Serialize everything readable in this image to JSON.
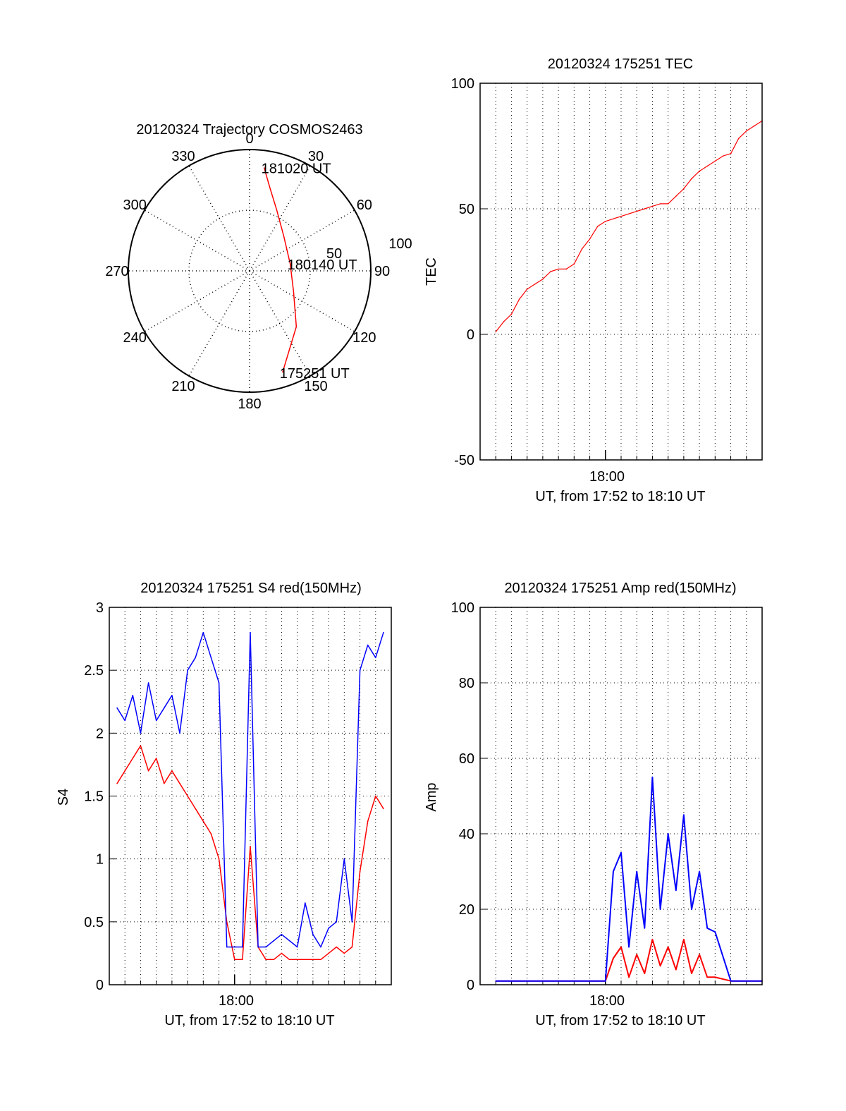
{
  "colors": {
    "red": "#ff0000",
    "blue": "#0000ff",
    "axis": "#000000",
    "grid": "#000000"
  },
  "chart_data": [
    {
      "id": "polar",
      "type": "polar-trajectory",
      "title": "20120324 Trajectory COSMOS2463",
      "azimuth_labels": [
        "0",
        "30",
        "60",
        "90",
        "120",
        "150",
        "180",
        "210",
        "240",
        "270",
        "300",
        "330"
      ],
      "radius_labels": [
        "50",
        "100"
      ],
      "radius_max": 100,
      "track": {
        "color": "#ff0000",
        "points": [
          {
            "az": 8,
            "r": 86
          },
          {
            "az": 14,
            "r": 70
          },
          {
            "az": 24,
            "r": 55
          },
          {
            "az": 45,
            "r": 40
          },
          {
            "az": 80,
            "r": 34
          },
          {
            "az": 115,
            "r": 40
          },
          {
            "az": 140,
            "r": 60
          },
          {
            "az": 162,
            "r": 88
          }
        ],
        "labels": [
          {
            "text": "181020 UT",
            "az": 8,
            "r": 86
          },
          {
            "text": "180140 UT",
            "az": 80,
            "r": 34
          },
          {
            "text": "175251 UT",
            "az": 162,
            "r": 88
          }
        ]
      }
    },
    {
      "id": "tec",
      "type": "line",
      "title": "20120324 175251 TEC",
      "xlabel": "UT, from 17:52 to 18:10 UT",
      "ylabel": "TEC",
      "xlim": [
        0,
        18
      ],
      "ylim": [
        -50,
        100
      ],
      "yticks": [
        -50,
        0,
        50,
        100
      ],
      "xtick_label": "18:00",
      "xtick_value": 8,
      "series": [
        {
          "name": "TEC",
          "color": "#ff0000",
          "x": [
            1.0,
            1.5,
            2.0,
            2.5,
            3.0,
            3.5,
            4.0,
            4.5,
            5.0,
            5.5,
            6.0,
            6.5,
            7.0,
            7.5,
            8.0,
            8.5,
            9.0,
            9.5,
            10.0,
            10.5,
            11.0,
            11.5,
            12.0,
            12.5,
            13.0,
            13.5,
            14.0,
            14.5,
            15.0,
            15.5,
            16.0,
            16.5,
            17.0,
            17.5,
            18.0
          ],
          "values": [
            1,
            5,
            8,
            14,
            18,
            20,
            22,
            25,
            26,
            26,
            28,
            34,
            38,
            43,
            45,
            46,
            47,
            48,
            49,
            50,
            51,
            52,
            52,
            55,
            58,
            62,
            65,
            67,
            69,
            71,
            72,
            78,
            81,
            83,
            85
          ]
        }
      ]
    },
    {
      "id": "s4",
      "type": "line",
      "title": "20120324 175251 S4 red(150MHz)",
      "xlabel": "UT, from 17:52 to 18:10 UT",
      "ylabel": "S4",
      "xlim": [
        0,
        18
      ],
      "ylim": [
        0,
        3
      ],
      "yticks": [
        0,
        0.5,
        1,
        1.5,
        2,
        2.5,
        3
      ],
      "ytick_labels": [
        "0",
        "0.5",
        "1",
        "1.5",
        "2",
        "2.5",
        "3"
      ],
      "xtick_label": "18:00",
      "xtick_value": 8,
      "series": [
        {
          "name": "S4 red",
          "color": "#ff0000",
          "x": [
            0.5,
            1.0,
            1.5,
            2.0,
            2.5,
            3.0,
            3.5,
            4.0,
            4.5,
            5.0,
            5.5,
            6.0,
            6.5,
            7.0,
            7.5,
            8.0,
            8.5,
            9.0,
            9.5,
            10.0,
            10.5,
            11.0,
            11.5,
            12.0,
            12.5,
            13.0,
            13.5,
            14.0,
            14.5,
            15.0,
            15.5,
            16.0,
            16.5,
            17.0,
            17.5
          ],
          "values": [
            1.6,
            1.7,
            1.8,
            1.9,
            1.7,
            1.8,
            1.6,
            1.7,
            1.6,
            1.5,
            1.4,
            1.3,
            1.2,
            1.0,
            0.5,
            0.2,
            0.2,
            1.1,
            0.3,
            0.2,
            0.2,
            0.25,
            0.2,
            0.2,
            0.2,
            0.2,
            0.2,
            0.25,
            0.3,
            0.25,
            0.3,
            0.9,
            1.3,
            1.5,
            1.4
          ]
        },
        {
          "name": "S4 blue",
          "color": "#0000ff",
          "x": [
            0.5,
            1.0,
            1.5,
            2.0,
            2.5,
            3.0,
            3.5,
            4.0,
            4.5,
            5.0,
            5.5,
            6.0,
            6.5,
            7.0,
            7.5,
            8.0,
            8.5,
            9.0,
            9.5,
            10.0,
            10.5,
            11.0,
            11.5,
            12.0,
            12.5,
            13.0,
            13.5,
            14.0,
            14.5,
            15.0,
            15.5,
            16.0,
            16.5,
            17.0,
            17.5
          ],
          "values": [
            2.2,
            2.1,
            2.3,
            2.0,
            2.4,
            2.1,
            2.2,
            2.3,
            2.0,
            2.5,
            2.6,
            2.8,
            2.6,
            2.4,
            0.3,
            0.3,
            0.3,
            2.8,
            0.3,
            0.3,
            0.35,
            0.4,
            0.35,
            0.3,
            0.65,
            0.4,
            0.3,
            0.45,
            0.5,
            1.0,
            0.5,
            2.5,
            2.7,
            2.6,
            2.8
          ]
        }
      ]
    },
    {
      "id": "amp",
      "type": "line",
      "title": "20120324 175251 Amp red(150MHz)",
      "xlabel": "UT, from 17:52 to 18:10 UT",
      "ylabel": "Amp",
      "xlim": [
        0,
        18
      ],
      "ylim": [
        0,
        100
      ],
      "yticks": [
        0,
        20,
        40,
        60,
        80,
        100
      ],
      "xtick_label": "18:00",
      "xtick_value": 8,
      "series": [
        {
          "name": "Amp red",
          "color": "#ff0000",
          "x": [
            1,
            2,
            3,
            4,
            5,
            6,
            7,
            8,
            8.5,
            9,
            9.5,
            10,
            10.5,
            11,
            11.5,
            12,
            12.5,
            13,
            13.5,
            14,
            14.5,
            15,
            16,
            17,
            18
          ],
          "values": [
            1,
            1,
            1,
            1,
            1,
            1,
            1,
            1,
            7,
            10,
            2,
            8,
            3,
            12,
            5,
            10,
            4,
            12,
            3,
            8,
            2,
            2,
            1,
            1,
            1
          ]
        },
        {
          "name": "Amp blue",
          "color": "#0000ff",
          "x": [
            1,
            2,
            3,
            4,
            5,
            6,
            7,
            8,
            8.5,
            9,
            9.5,
            10,
            10.5,
            11,
            11.5,
            12,
            12.5,
            13,
            13.5,
            14,
            14.5,
            15,
            16,
            17,
            18
          ],
          "values": [
            1,
            1,
            1,
            1,
            1,
            1,
            1,
            1,
            30,
            35,
            10,
            30,
            15,
            55,
            20,
            40,
            25,
            45,
            20,
            30,
            15,
            14,
            1,
            1,
            1
          ]
        }
      ]
    }
  ]
}
